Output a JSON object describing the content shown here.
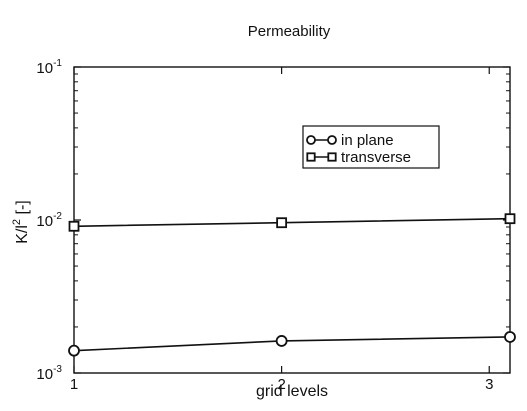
{
  "chart_data": {
    "type": "line",
    "title": "Permeability",
    "xlabel": "grid levels",
    "ylabel": {
      "base": "K/l",
      "superscript": "2",
      "unit": " [-]"
    },
    "x": [
      1,
      2,
      3.1
    ],
    "xlim": [
      1,
      3.1
    ],
    "ylim": [
      0.001,
      0.1
    ],
    "yscale": "log",
    "xticks": [
      {
        "value": 1,
        "label": "1"
      },
      {
        "value": 2,
        "label": "2"
      },
      {
        "value": 3,
        "label": "3"
      }
    ],
    "yticks": [
      {
        "value": 0.001,
        "base": "10",
        "exp": "-3"
      },
      {
        "value": 0.01,
        "base": "10",
        "exp": "-2"
      },
      {
        "value": 0.1,
        "base": "10",
        "exp": "-1"
      }
    ],
    "grid": false,
    "legend_position": "upper-right",
    "series": [
      {
        "name": "in plane",
        "marker": "circle",
        "color": "#111111",
        "values": [
          0.0014,
          0.00162,
          0.00172
        ]
      },
      {
        "name": "transverse",
        "marker": "square",
        "color": "#111111",
        "values": [
          0.0091,
          0.0096,
          0.0102
        ]
      }
    ]
  }
}
